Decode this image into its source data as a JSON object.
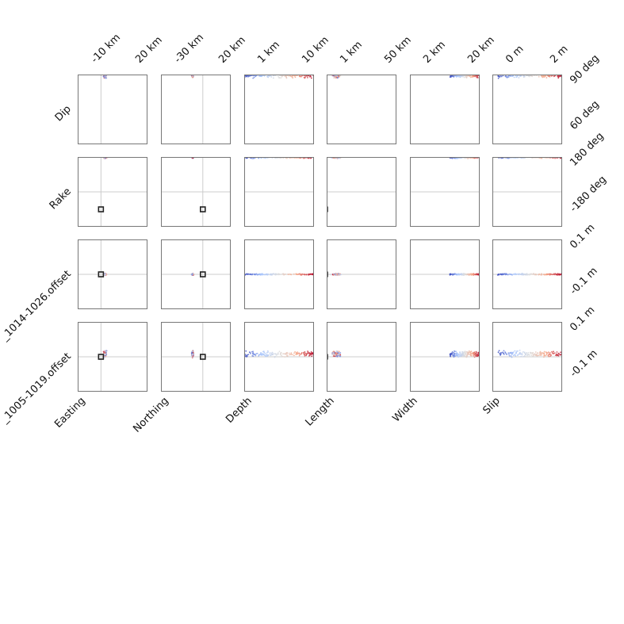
{
  "chart_data": {
    "type": "scatter",
    "title": "",
    "row_labels": [
      "Dip",
      "Rake",
      "_1014-1026.offset",
      "_1005-1019.offset"
    ],
    "column_labels": [
      "Easting",
      "Northing",
      "Depth",
      "Length",
      "Width",
      "Slip"
    ],
    "top_tick_labels": [
      [
        "-10 km",
        "20 km"
      ],
      [
        "-30 km",
        "20 km"
      ],
      [
        "1 km",
        "10 km"
      ],
      [
        "1 km",
        "50 km"
      ],
      [
        "2 km",
        "20 km"
      ],
      [
        "0 m",
        "2 m"
      ]
    ],
    "right_tick_labels": [
      [
        "90 deg",
        "60 deg"
      ],
      [
        "180 deg",
        "-180 deg"
      ],
      [
        "0.1 m",
        "-0.1 m"
      ],
      [
        "0.1 m",
        "-0.1 m"
      ]
    ],
    "columns": [
      {
        "name": "Easting",
        "xlim": [
          -10,
          20
        ],
        "unit": "km",
        "scale": "linear",
        "zero_line": 0,
        "marker": 0
      },
      {
        "name": "Northing",
        "xlim": [
          -30,
          20
        ],
        "unit": "km",
        "scale": "linear",
        "zero_line": 0,
        "marker": 0
      },
      {
        "name": "Depth",
        "xlim": [
          1,
          10
        ],
        "unit": "km",
        "scale": "log"
      },
      {
        "name": "Length",
        "xlim": [
          1,
          50
        ],
        "unit": "km",
        "scale": "log",
        "marker": 1
      },
      {
        "name": "Width",
        "xlim": [
          2,
          20
        ],
        "unit": "km",
        "scale": "log"
      },
      {
        "name": "Slip",
        "xlim": [
          0,
          2
        ],
        "unit": "m",
        "scale": "linear"
      }
    ],
    "rows": [
      {
        "name": "Dip",
        "ylim": [
          60,
          90
        ],
        "unit": "deg",
        "value": 90,
        "spread": 0.6
      },
      {
        "name": "Rake",
        "ylim": [
          -180,
          180
        ],
        "unit": "deg",
        "zero_line": 0,
        "value": 180,
        "spread": 3,
        "marker": -90
      },
      {
        "name": "_1014-1026.offset",
        "ylim": [
          -0.1,
          0.1
        ],
        "unit": "m",
        "zero_line": 0,
        "value": 0.0,
        "spread": 0.001,
        "marker": 0
      },
      {
        "name": "_1005-1019.offset",
        "ylim": [
          -0.1,
          0.1
        ],
        "unit": "m",
        "zero_line": 0,
        "value": 0.008,
        "spread": 0.004,
        "marker": 0
      }
    ],
    "sample_ranges": {
      "Easting": [
        0.7,
        2.8
      ],
      "Northing": [
        -8.5,
        -6.2
      ],
      "Depth": [
        1.0,
        10.0
      ],
      "Length": [
        1.1,
        2.4
      ],
      "Width": [
        7.5,
        20.0
      ],
      "Slip": [
        0.15,
        2.0
      ]
    },
    "colormap": [
      "#3b4cc0",
      "#aac7fd",
      "#dddddd",
      "#f7a889",
      "#b40426"
    ],
    "grid": false
  }
}
